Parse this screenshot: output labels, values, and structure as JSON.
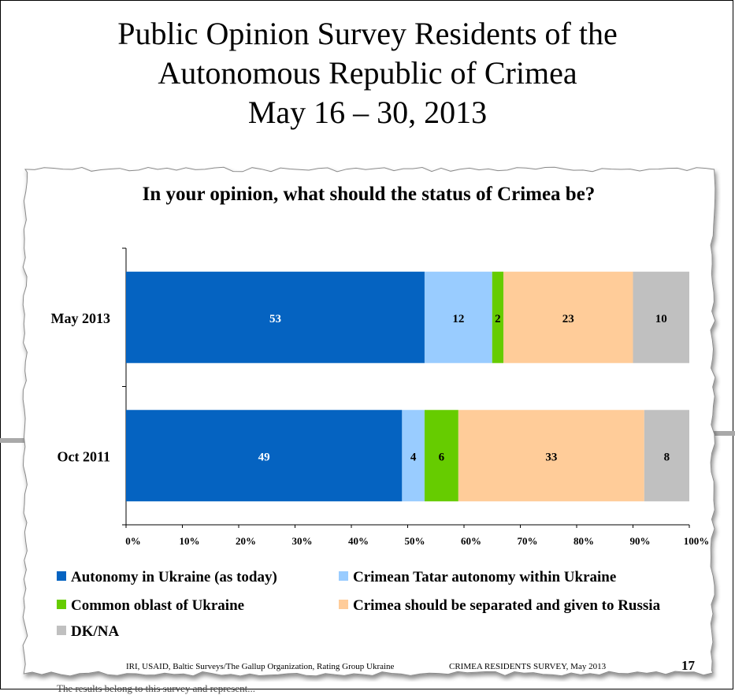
{
  "slide": {
    "title_lines": [
      "Public Opinion Survey Residents of the",
      "Autonomous Republic of Crimea",
      "May 16 – 30, 2013"
    ],
    "footer_source": "IRI, USAID,  Baltic Surveys/The Gallup Organization, Rating Group Ukraine",
    "footer_survey": "CRIMEA RESIDENTS SURVEY, May 2013",
    "page_number": "17",
    "bottom_text": "The results belong to this survey and represent..."
  },
  "chart_data": {
    "type": "bar",
    "orientation": "horizontal",
    "stacked": true,
    "percent": true,
    "title": "In your opinion, what should the status of Crimea be?",
    "categories": [
      "May 2013",
      "Oct 2011"
    ],
    "series": [
      {
        "name": "Autonomy in Ukraine (as today)",
        "color": "#0563C1",
        "label_color": "#ffffff",
        "values": [
          53,
          49
        ]
      },
      {
        "name": "Crimean Tatar autonomy within Ukraine",
        "color": "#99CCFF",
        "label_color": "#000000",
        "values": [
          12,
          4
        ]
      },
      {
        "name": "Common oblast of Ukraine",
        "color": "#66CC00",
        "label_color": "#000000",
        "values": [
          2,
          6
        ]
      },
      {
        "name": "Crimea should be separated and given to Russia",
        "color": "#FFCC99",
        "label_color": "#000000",
        "values": [
          23,
          33
        ]
      },
      {
        "name": "DK/NA",
        "color": "#C0C0C0",
        "label_color": "#000000",
        "values": [
          10,
          8
        ]
      }
    ],
    "xticks": [
      "0%",
      "10%",
      "20%",
      "30%",
      "40%",
      "50%",
      "60%",
      "70%",
      "80%",
      "90%",
      "100%"
    ],
    "xlim": [
      0,
      100
    ],
    "grid": false,
    "legend_position": "bottom"
  }
}
